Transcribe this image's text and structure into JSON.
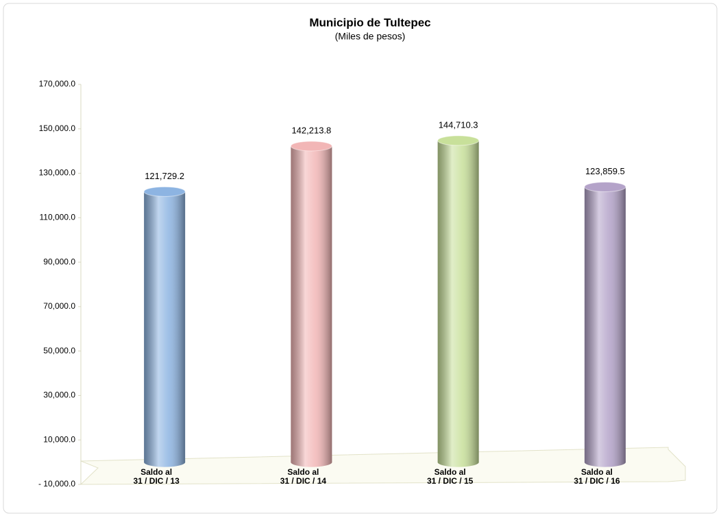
{
  "chart_data": {
    "type": "bar",
    "title": "Municipio de Tultepec",
    "subtitle": "(Miles de pesos)",
    "categories": [
      [
        "Saldo al",
        "31 / DIC / 13"
      ],
      [
        "Saldo al",
        "31 / DIC / 14"
      ],
      [
        "Saldo al",
        "31 / DIC / 15"
      ],
      [
        "Saldo al",
        "31 / DIC / 16"
      ]
    ],
    "values": [
      121729.2,
      142213.8,
      144710.3,
      123859.5
    ],
    "value_labels": [
      "121,729.2",
      "142,213.8",
      "144,710.3",
      "123,859.5"
    ],
    "colors": [
      "#8db4e2",
      "#f2b6b6",
      "#c8e09a",
      "#b4a3c9"
    ],
    "ylim": [
      -10000,
      170000
    ],
    "yticks": [
      {
        "value": -10000,
        "label": "- 10,000.0"
      },
      {
        "value": 10000,
        "label": "10,000.0"
      },
      {
        "value": 30000,
        "label": "30,000.0"
      },
      {
        "value": 50000,
        "label": "50,000.0"
      },
      {
        "value": 70000,
        "label": "70,000.0"
      },
      {
        "value": 90000,
        "label": "90,000.0"
      },
      {
        "value": 110000,
        "label": "110,000.0"
      },
      {
        "value": 130000,
        "label": "130,000.0"
      },
      {
        "value": 150000,
        "label": "150,000.0"
      },
      {
        "value": 170000,
        "label": "170,000.0"
      }
    ],
    "grid": false
  }
}
